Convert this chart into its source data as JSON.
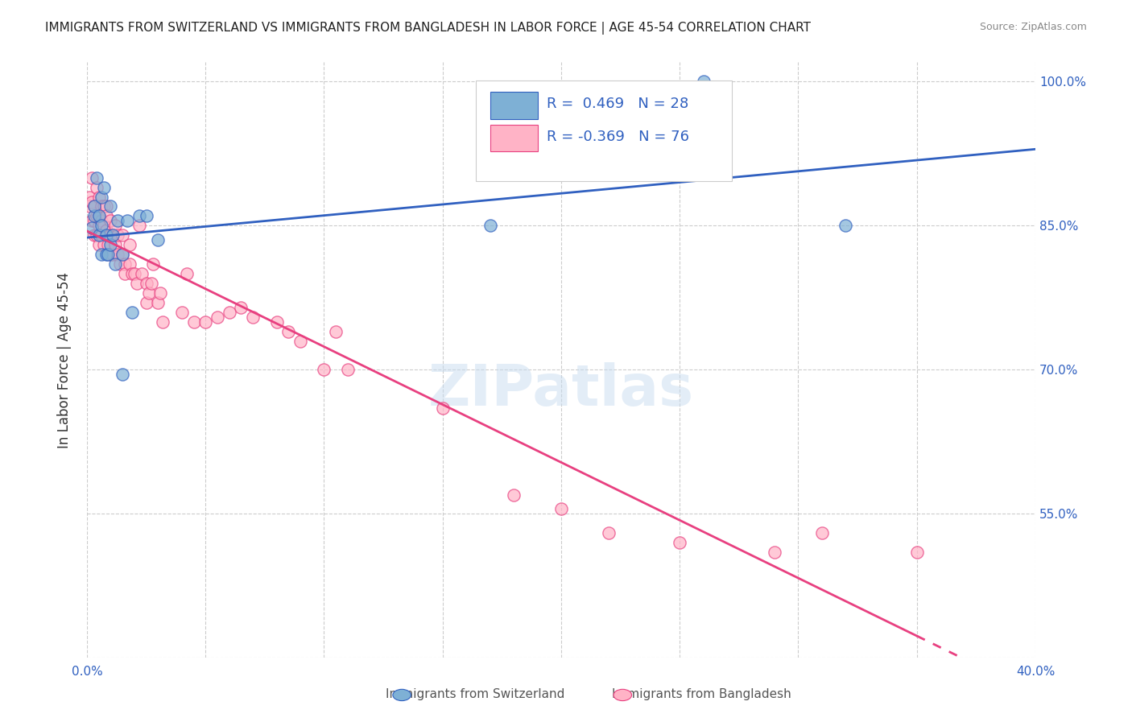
{
  "title": "IMMIGRANTS FROM SWITZERLAND VS IMMIGRANTS FROM BANGLADESH IN LABOR FORCE | AGE 45-54 CORRELATION CHART",
  "source": "Source: ZipAtlas.com",
  "ylabel": "In Labor Force | Age 45-54",
  "xlim": [
    0.0,
    0.4
  ],
  "ylim": [
    0.4,
    1.02
  ],
  "xticks": [
    0.0,
    0.05,
    0.1,
    0.15,
    0.2,
    0.25,
    0.3,
    0.35,
    0.4
  ],
  "yticks_left": [
    0.4,
    0.55,
    0.7,
    0.85,
    1.0
  ],
  "yticks_right": [
    0.55,
    0.7,
    0.85,
    1.0
  ],
  "yticklabels_right": [
    "55.0%",
    "70.0%",
    "85.0%",
    "100.0%"
  ],
  "legend_R1": "0.469",
  "legend_N1": "28",
  "legend_R2": "-0.369",
  "legend_N2": "76",
  "blue_color": "#7EB0D5",
  "pink_color": "#FFB3C6",
  "trend_blue": "#3060C0",
  "trend_pink": "#E84080",
  "grid_color": "#CCCCCC",
  "watermark": "ZIPatlas",
  "switzerland_x": [
    0.002,
    0.003,
    0.003,
    0.004,
    0.005,
    0.005,
    0.006,
    0.006,
    0.006,
    0.007,
    0.008,
    0.008,
    0.009,
    0.01,
    0.01,
    0.011,
    0.012,
    0.013,
    0.015,
    0.015,
    0.017,
    0.019,
    0.022,
    0.025,
    0.03,
    0.17,
    0.26,
    0.32
  ],
  "switzerland_y": [
    0.848,
    0.86,
    0.87,
    0.9,
    0.86,
    0.84,
    0.82,
    0.85,
    0.88,
    0.89,
    0.82,
    0.84,
    0.82,
    0.83,
    0.87,
    0.84,
    0.81,
    0.855,
    0.695,
    0.82,
    0.855,
    0.76,
    0.86,
    0.86,
    0.835,
    0.85,
    1.0,
    0.85
  ],
  "bangladesh_x": [
    0.001,
    0.001,
    0.002,
    0.002,
    0.002,
    0.003,
    0.003,
    0.003,
    0.004,
    0.004,
    0.004,
    0.005,
    0.005,
    0.005,
    0.005,
    0.006,
    0.006,
    0.006,
    0.007,
    0.007,
    0.007,
    0.008,
    0.008,
    0.008,
    0.009,
    0.01,
    0.01,
    0.01,
    0.011,
    0.011,
    0.012,
    0.012,
    0.013,
    0.013,
    0.014,
    0.015,
    0.015,
    0.016,
    0.016,
    0.018,
    0.018,
    0.019,
    0.02,
    0.021,
    0.022,
    0.023,
    0.025,
    0.025,
    0.026,
    0.027,
    0.028,
    0.03,
    0.031,
    0.032,
    0.04,
    0.042,
    0.045,
    0.05,
    0.055,
    0.06,
    0.065,
    0.07,
    0.08,
    0.085,
    0.09,
    0.1,
    0.105,
    0.11,
    0.15,
    0.18,
    0.2,
    0.22,
    0.25,
    0.29,
    0.31,
    0.35
  ],
  "bangladesh_y": [
    0.88,
    0.87,
    0.9,
    0.875,
    0.855,
    0.87,
    0.855,
    0.84,
    0.89,
    0.86,
    0.84,
    0.88,
    0.86,
    0.85,
    0.83,
    0.87,
    0.855,
    0.84,
    0.87,
    0.85,
    0.83,
    0.87,
    0.86,
    0.845,
    0.83,
    0.855,
    0.84,
    0.82,
    0.84,
    0.82,
    0.85,
    0.83,
    0.84,
    0.82,
    0.81,
    0.84,
    0.82,
    0.81,
    0.8,
    0.83,
    0.81,
    0.8,
    0.8,
    0.79,
    0.85,
    0.8,
    0.79,
    0.77,
    0.78,
    0.79,
    0.81,
    0.77,
    0.78,
    0.75,
    0.76,
    0.8,
    0.75,
    0.75,
    0.755,
    0.76,
    0.765,
    0.755,
    0.75,
    0.74,
    0.73,
    0.7,
    0.74,
    0.7,
    0.66,
    0.57,
    0.555,
    0.53,
    0.52,
    0.51,
    0.53,
    0.51
  ]
}
